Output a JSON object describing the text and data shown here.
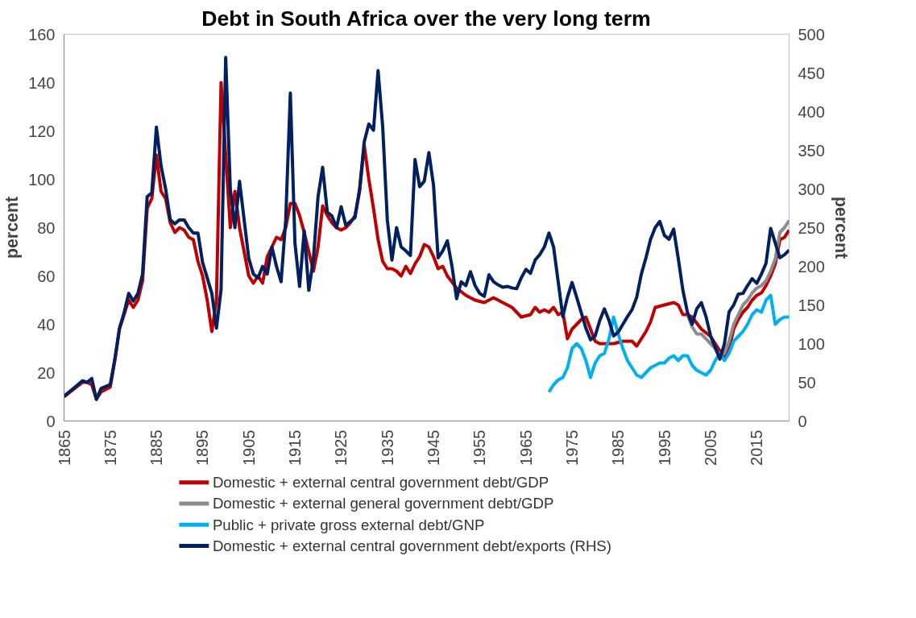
{
  "chart_data": {
    "type": "line",
    "title": "Debt in South Africa over the very long term",
    "ylabel": "percent",
    "y2label": "percent",
    "xlim": [
      1865,
      2022
    ],
    "xticks": [
      1865,
      1875,
      1885,
      1895,
      1905,
      1915,
      1925,
      1935,
      1945,
      1955,
      1965,
      1975,
      1985,
      1995,
      2005,
      2015
    ],
    "ylim": [
      0,
      160
    ],
    "yticks": [
      0,
      20,
      40,
      60,
      80,
      100,
      120,
      140,
      160
    ],
    "y2lim": [
      0,
      500
    ],
    "y2ticks": [
      0,
      50,
      100,
      150,
      200,
      250,
      300,
      350,
      400,
      450,
      500
    ],
    "grid": false,
    "legend": "bottom",
    "marker": "none",
    "line_style": "solid",
    "series": [
      {
        "name": "Domestic + external central government debt/GDP",
        "color": "#c00000",
        "x": [
          1865,
          1867,
          1869,
          1870,
          1871,
          1872,
          1873,
          1875,
          1876,
          1877,
          1878,
          1879,
          1880,
          1881,
          1882,
          1883,
          1884,
          1885,
          1886,
          1887,
          1888,
          1889,
          1890,
          1891,
          1892,
          1893,
          1894,
          1895,
          1896,
          1897,
          1898,
          1899,
          1900,
          1901,
          1902,
          1903,
          1904,
          1905,
          1906,
          1907,
          1908,
          1909,
          1910,
          1911,
          1912,
          1913,
          1914,
          1915,
          1916,
          1917,
          1918,
          1919,
          1920,
          1921,
          1922,
          1923,
          1924,
          1925,
          1926,
          1927,
          1928,
          1929,
          1930,
          1931,
          1932,
          1933,
          1934,
          1935,
          1936,
          1937,
          1938,
          1939,
          1940,
          1941,
          1942,
          1943,
          1944,
          1945,
          1946,
          1947,
          1948,
          1950,
          1952,
          1954,
          1956,
          1958,
          1960,
          1962,
          1964,
          1966,
          1967,
          1968,
          1969,
          1970,
          1971,
          1972,
          1973,
          1974,
          1975,
          1976,
          1977,
          1978,
          1979,
          1980,
          1981,
          1982,
          1984,
          1986,
          1988,
          1989,
          1990,
          1991,
          1992,
          1993,
          1995,
          1997,
          1998,
          1999,
          2000,
          2001,
          2003,
          2005,
          2006,
          2007,
          2008,
          2009,
          2010,
          2011,
          2012,
          2013,
          2014,
          2015,
          2016,
          2017,
          2018,
          2019,
          2020,
          2021,
          2022
        ],
        "values": [
          10,
          13,
          16,
          16,
          15,
          9,
          12,
          14,
          25,
          38,
          44,
          50,
          47,
          50,
          58,
          88,
          92,
          110,
          95,
          92,
          82,
          78,
          80,
          79,
          76,
          75,
          66,
          60,
          50,
          37,
          50,
          140,
          110,
          80,
          95,
          80,
          70,
          60,
          57,
          60,
          57,
          68,
          72,
          76,
          75,
          80,
          90,
          90,
          85,
          78,
          70,
          62,
          72,
          89,
          85,
          82,
          80,
          79,
          80,
          82,
          85,
          95,
          114,
          100,
          88,
          75,
          66,
          63,
          63,
          62,
          60,
          64,
          61,
          65,
          68,
          73,
          72,
          68,
          63,
          64,
          60,
          55,
          52,
          50,
          49,
          51,
          49,
          47,
          43,
          44,
          47,
          45,
          46,
          45,
          47,
          44,
          45,
          34,
          38,
          40,
          42,
          43,
          38,
          33,
          32,
          32,
          32,
          33,
          33,
          31,
          34,
          37,
          41,
          47,
          48,
          49,
          48,
          44,
          44,
          43,
          38,
          35,
          32,
          29,
          26,
          30,
          38,
          42,
          45,
          47,
          50,
          52,
          53,
          56,
          60,
          65,
          75,
          76,
          79
        ]
      },
      {
        "name": "Domestic + external general government debt/GDP",
        "color": "#8c8c8c",
        "x": [
          2000,
          2001,
          2002,
          2003,
          2004,
          2005,
          2006,
          2007,
          2008,
          2009,
          2010,
          2011,
          2012,
          2013,
          2014,
          2015,
          2016,
          2017,
          2018,
          2019,
          2020,
          2021,
          2022
        ],
        "values": [
          44,
          39,
          36,
          36,
          34,
          32,
          30,
          27,
          28,
          33,
          40,
          44,
          48,
          50,
          53,
          55,
          56,
          58,
          62,
          67,
          78,
          80,
          83
        ]
      },
      {
        "name": "Public + private gross external debt/GNP",
        "color": "#00b0f0",
        "x": [
          1970,
          1971,
          1972,
          1973,
          1974,
          1975,
          1976,
          1977,
          1978,
          1979,
          1980,
          1981,
          1982,
          1983,
          1984,
          1985,
          1986,
          1987,
          1988,
          1989,
          1990,
          1991,
          1992,
          1993,
          1994,
          1995,
          1996,
          1997,
          1998,
          1999,
          2000,
          2001,
          2002,
          2003,
          2004,
          2005,
          2006,
          2007,
          2008,
          2009,
          2010,
          2011,
          2012,
          2013,
          2014,
          2015,
          2016,
          2017,
          2018,
          2019,
          2020,
          2021,
          2022
        ],
        "values": [
          12,
          15,
          17,
          18,
          22,
          30,
          32,
          30,
          25,
          18,
          24,
          27,
          28,
          34,
          43,
          36,
          30,
          25,
          22,
          19,
          18,
          20,
          22,
          23,
          24,
          24,
          26,
          27,
          25,
          27,
          27,
          23,
          21,
          20,
          19,
          21,
          25,
          28,
          25,
          28,
          33,
          35,
          37,
          40,
          44,
          46,
          45,
          50,
          52,
          40,
          42,
          43,
          43
        ]
      },
      {
        "name": "Domestic + external central government debt/exports (RHS)",
        "color": "#002060",
        "axis": "y2",
        "x": [
          1865,
          1867,
          1869,
          1870,
          1871,
          1872,
          1873,
          1875,
          1876,
          1877,
          1878,
          1879,
          1880,
          1881,
          1882,
          1883,
          1884,
          1885,
          1886,
          1887,
          1888,
          1889,
          1890,
          1891,
          1892,
          1893,
          1894,
          1895,
          1896,
          1897,
          1898,
          1899,
          1900,
          1901,
          1902,
          1903,
          1904,
          1905,
          1906,
          1907,
          1908,
          1909,
          1910,
          1911,
          1912,
          1913,
          1914,
          1915,
          1916,
          1917,
          1918,
          1919,
          1920,
          1921,
          1922,
          1923,
          1924,
          1925,
          1926,
          1927,
          1928,
          1929,
          1930,
          1931,
          1932,
          1933,
          1934,
          1935,
          1936,
          1937,
          1938,
          1939,
          1940,
          1941,
          1942,
          1943,
          1944,
          1945,
          1946,
          1947,
          1948,
          1949,
          1950,
          1951,
          1952,
          1953,
          1954,
          1955,
          1956,
          1957,
          1958,
          1959,
          1960,
          1961,
          1962,
          1963,
          1964,
          1965,
          1966,
          1967,
          1968,
          1969,
          1970,
          1971,
          1972,
          1973,
          1974,
          1975,
          1976,
          1977,
          1978,
          1979,
          1980,
          1981,
          1982,
          1983,
          1984,
          1985,
          1986,
          1987,
          1988,
          1989,
          1990,
          1991,
          1992,
          1993,
          1994,
          1995,
          1996,
          1997,
          1998,
          1999,
          2000,
          2001,
          2002,
          2003,
          2004,
          2005,
          2006,
          2007,
          2008,
          2009,
          2010,
          2011,
          2012,
          2013,
          2014,
          2015,
          2016,
          2017,
          2018,
          2019,
          2020,
          2021,
          2022
        ],
        "values": [
          32,
          42,
          52,
          50,
          55,
          28,
          42,
          47,
          80,
          120,
          140,
          165,
          155,
          165,
          190,
          290,
          295,
          380,
          330,
          300,
          260,
          255,
          260,
          260,
          250,
          243,
          243,
          205,
          185,
          165,
          120,
          170,
          470,
          300,
          250,
          310,
          260,
          210,
          190,
          185,
          200,
          190,
          225,
          200,
          180,
          260,
          424,
          230,
          174,
          246,
          169,
          210,
          290,
          328,
          270,
          265,
          250,
          277,
          253,
          258,
          263,
          300,
          361,
          384,
          376,
          453,
          380,
          260,
          208,
          250,
          225,
          220,
          214,
          338,
          303,
          310,
          347,
          305,
          211,
          220,
          233,
          200,
          158,
          180,
          175,
          193,
          175,
          165,
          161,
          189,
          180,
          176,
          173,
          174,
          172,
          171,
          185,
          196,
          191,
          208,
          215,
          225,
          243,
          225,
          180,
          135,
          160,
          179,
          160,
          140,
          120,
          105,
          110,
          130,
          145,
          130,
          110,
          115,
          125,
          135,
          144,
          160,
          190,
          211,
          235,
          250,
          258,
          240,
          235,
          248,
          210,
          169,
          140,
          125,
          145,
          153,
          135,
          110,
          95,
          80,
          100,
          141,
          150,
          164,
          165,
          175,
          184,
          178,
          190,
          204,
          249,
          230,
          211,
          215,
          221
        ]
      }
    ]
  }
}
